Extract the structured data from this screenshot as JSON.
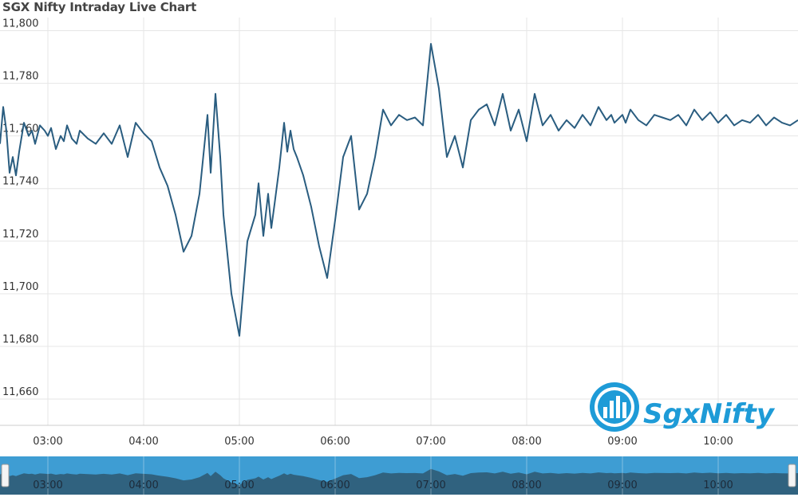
{
  "title": "SGX Nifty Intraday Live Chart",
  "brand": {
    "text": "SgxNifty",
    "color": "#1e9bd7"
  },
  "colors": {
    "line": "#2a5d80",
    "grid": "#e6e6e6",
    "navigator_bg": "#3e9dd3",
    "navigator_fill": "#2e5870"
  },
  "chart_data": {
    "type": "line",
    "title": "SGX Nifty Intraday Live Chart",
    "xlabel": "",
    "ylabel": "",
    "ylim": [
      11650,
      11805
    ],
    "yticks": [
      11660,
      11680,
      11700,
      11720,
      11740,
      11760,
      11780,
      11800
    ],
    "ytick_labels": [
      "11,660",
      "11,680",
      "11,700",
      "11,720",
      "11,740",
      "11,760",
      "11,780",
      "11,800"
    ],
    "xlim": [
      "02:30",
      "10:50"
    ],
    "xticks": [
      "03:00",
      "04:00",
      "05:00",
      "06:00",
      "07:00",
      "08:00",
      "09:00",
      "10:00"
    ],
    "grid": true,
    "navigator": true,
    "series": [
      {
        "x": [
          "02:30",
          "02:32",
          "02:34",
          "02:36",
          "02:38",
          "02:40",
          "02:42",
          "02:45",
          "02:48",
          "02:50",
          "02:52",
          "02:55",
          "02:58",
          "03:00",
          "03:02",
          "03:05",
          "03:08",
          "03:10",
          "03:12",
          "03:15",
          "03:18",
          "03:20",
          "03:25",
          "03:30",
          "03:35",
          "03:40",
          "03:45",
          "03:50",
          "03:55",
          "04:00",
          "04:05",
          "04:08",
          "04:10",
          "04:15",
          "04:20",
          "04:25",
          "04:30",
          "04:35",
          "04:40",
          "04:42",
          "04:45",
          "04:48",
          "04:50",
          "04:55",
          "05:00",
          "05:05",
          "05:10",
          "05:12",
          "05:15",
          "05:18",
          "05:20",
          "05:22",
          "05:25",
          "05:28",
          "05:30",
          "05:32",
          "05:34",
          "05:36",
          "05:40",
          "05:45",
          "05:50",
          "05:55",
          "06:00",
          "06:05",
          "06:10",
          "06:15",
          "06:20",
          "06:25",
          "06:30",
          "06:35",
          "06:40",
          "06:45",
          "06:50",
          "06:55",
          "07:00",
          "07:05",
          "07:08",
          "07:10",
          "07:15",
          "07:20",
          "07:25",
          "07:30",
          "07:35",
          "07:40",
          "07:45",
          "07:50",
          "07:55",
          "08:00",
          "08:05",
          "08:10",
          "08:15",
          "08:20",
          "08:25",
          "08:30",
          "08:35",
          "08:40",
          "08:45",
          "08:50",
          "08:53",
          "08:55",
          "09:00",
          "09:02",
          "09:05",
          "09:10",
          "09:15",
          "09:20",
          "09:25",
          "09:30",
          "09:35",
          "09:40",
          "09:45",
          "09:50",
          "09:55",
          "10:00",
          "10:05",
          "10:10",
          "10:15",
          "10:20",
          "10:25",
          "10:30",
          "10:35",
          "10:40",
          "10:45",
          "10:50"
        ],
        "values": [
          11757,
          11771,
          11762,
          11746,
          11752,
          11745,
          11754,
          11765,
          11760,
          11762,
          11757,
          11764,
          11762,
          11760,
          11763,
          11755,
          11760,
          11758,
          11764,
          11759,
          11757,
          11762,
          11759,
          11757,
          11761,
          11757,
          11764,
          11752,
          11765,
          11761,
          11758,
          11752,
          11748,
          11741,
          11730,
          11716,
          11722,
          11738,
          11768,
          11746,
          11776,
          11752,
          11730,
          11700,
          11684,
          11720,
          11730,
          11742,
          11722,
          11738,
          11725,
          11734,
          11748,
          11765,
          11754,
          11762,
          11755,
          11752,
          11745,
          11733,
          11718,
          11706,
          11728,
          11752,
          11760,
          11732,
          11738,
          11752,
          11770,
          11764,
          11768,
          11766,
          11767,
          11764,
          11795,
          11778,
          11762,
          11752,
          11760,
          11748,
          11766,
          11770,
          11772,
          11764,
          11776,
          11762,
          11770,
          11758,
          11776,
          11764,
          11768,
          11762,
          11766,
          11763,
          11768,
          11764,
          11771,
          11766,
          11768,
          11765,
          11768,
          11765,
          11770,
          11766,
          11764,
          11768,
          11767,
          11766,
          11768,
          11764,
          11770,
          11766,
          11769,
          11765,
          11768,
          11764,
          11766,
          11765,
          11768,
          11764,
          11767,
          11765,
          11764,
          11766
        ]
      }
    ]
  }
}
